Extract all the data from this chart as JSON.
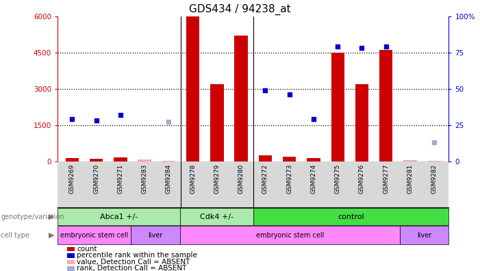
{
  "title": "GDS434 / 94238_at",
  "samples": [
    "GSM9269",
    "GSM9270",
    "GSM9271",
    "GSM9283",
    "GSM9284",
    "GSM9278",
    "GSM9279",
    "GSM9280",
    "GSM9272",
    "GSM9273",
    "GSM9274",
    "GSM9275",
    "GSM9276",
    "GSM9277",
    "GSM9281",
    "GSM9282"
  ],
  "counts": [
    130,
    110,
    170,
    null,
    null,
    6000,
    3200,
    5200,
    230,
    200,
    130,
    4500,
    3200,
    4600,
    null,
    null
  ],
  "absent_counts": [
    null,
    null,
    null,
    80,
    30,
    null,
    null,
    null,
    null,
    null,
    null,
    null,
    null,
    null,
    50,
    30
  ],
  "ranks_pct": [
    29,
    28,
    32,
    null,
    null,
    null,
    null,
    null,
    49,
    46,
    29,
    79,
    78,
    79,
    null,
    null
  ],
  "absent_ranks_pct": [
    null,
    null,
    null,
    null,
    27,
    null,
    null,
    null,
    null,
    null,
    null,
    null,
    null,
    null,
    null,
    13
  ],
  "yticks_left": [
    0,
    1500,
    3000,
    4500,
    6000
  ],
  "yticks_right": [
    0,
    25,
    50,
    75,
    100
  ],
  "bar_color": "#cc0000",
  "dot_color": "#0000cc",
  "absent_bar_color": "#ffaaaa",
  "absent_dot_color": "#aaaacc",
  "genotype_groups": [
    {
      "label": "Abca1 +/-",
      "start": 0,
      "end": 5,
      "color": "#aaeaaa"
    },
    {
      "label": "Cdk4 +/-",
      "start": 5,
      "end": 8,
      "color": "#aaeaaa"
    },
    {
      "label": "control",
      "start": 8,
      "end": 16,
      "color": "#44dd44"
    }
  ],
  "celltype_groups": [
    {
      "label": "embryonic stem cell",
      "start": 0,
      "end": 3,
      "color": "#ff88ff"
    },
    {
      "label": "liver",
      "start": 3,
      "end": 5,
      "color": "#cc88ff"
    },
    {
      "label": "embryonic stem cell",
      "start": 5,
      "end": 14,
      "color": "#ff88ff"
    },
    {
      "label": "liver",
      "start": 14,
      "end": 16,
      "color": "#cc88ff"
    }
  ],
  "legend_items": [
    {
      "label": "count",
      "color": "#cc0000"
    },
    {
      "label": "percentile rank within the sample",
      "color": "#0000cc"
    },
    {
      "label": "value, Detection Call = ABSENT",
      "color": "#ffaaaa"
    },
    {
      "label": "rank, Detection Call = ABSENT",
      "color": "#aaaacc"
    }
  ]
}
